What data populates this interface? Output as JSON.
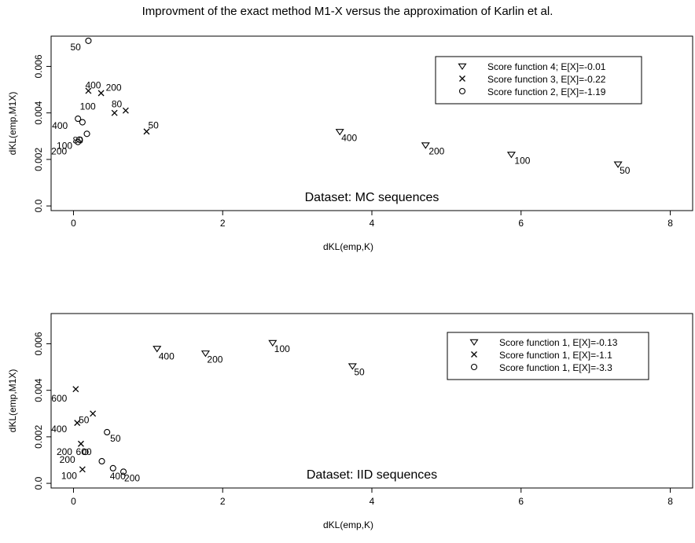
{
  "title": "Improvment of the exact method M1-X versus the approximation of Karlin et al.",
  "chart_data": [
    {
      "type": "scatter",
      "xlabel": "dKL(emp,K)",
      "ylabel": "dKL(emp,M1X)",
      "xlim": [
        -0.3,
        8.3
      ],
      "ylim": [
        -0.0002,
        0.0073
      ],
      "x_ticks": [
        0,
        2,
        4,
        6,
        8
      ],
      "x_tick_labels": [
        "0",
        "2",
        "4",
        "6",
        "8"
      ],
      "y_ticks": [
        0.0,
        0.002,
        0.004,
        0.006
      ],
      "y_tick_labels": [
        "0.0",
        "0.002",
        "0.004",
        "0.006"
      ],
      "annotation": "Dataset: MC sequences",
      "grid": false,
      "legend_position": "top-right",
      "series": [
        {
          "name": "Score function 4; E[X]=-0.01",
          "marker": "triangle-down",
          "points": [
            {
              "x": 3.57,
              "y": 0.0032,
              "label": "400"
            },
            {
              "x": 4.72,
              "y": 0.00262,
              "label": "200"
            },
            {
              "x": 5.87,
              "y": 0.00222,
              "label": "100"
            },
            {
              "x": 7.3,
              "y": 0.0018,
              "label": "50"
            }
          ]
        },
        {
          "name": "Score function 3, E[X]=-0.22",
          "marker": "cross",
          "points": [
            {
              "x": 0.2,
              "y": 0.00495,
              "label": "400"
            },
            {
              "x": 0.37,
              "y": 0.00485,
              "label": "200"
            },
            {
              "x": 0.55,
              "y": 0.004,
              "label": "100"
            },
            {
              "x": 0.7,
              "y": 0.0041,
              "label": "80"
            },
            {
              "x": 0.98,
              "y": 0.0032,
              "label": "50"
            }
          ]
        },
        {
          "name": "Score function 2, E[X]=-1.19",
          "marker": "circle",
          "points": [
            {
              "x": 0.06,
              "y": 0.00375,
              "label": "400"
            },
            {
              "x": 0.12,
              "y": 0.0036,
              "label": ""
            },
            {
              "x": 0.18,
              "y": 0.0031,
              "label": "80"
            },
            {
              "x": 0.08,
              "y": 0.00285,
              "label": "100"
            },
            {
              "x": 0.06,
              "y": 0.00275,
              "label": "200"
            },
            {
              "x": 0.2,
              "y": 0.0071,
              "label": "50"
            }
          ]
        }
      ]
    },
    {
      "type": "scatter",
      "xlabel": "dKL(emp,K)",
      "ylabel": "dKL(emp,M1X)",
      "xlim": [
        -0.3,
        8.3
      ],
      "ylim": [
        -0.0002,
        0.0073
      ],
      "x_ticks": [
        0,
        2,
        4,
        6,
        8
      ],
      "x_tick_labels": [
        "0",
        "2",
        "4",
        "6",
        "8"
      ],
      "y_ticks": [
        0.0,
        0.002,
        0.004,
        0.006
      ],
      "y_tick_labels": [
        "0.0",
        "0.002",
        "0.004",
        "0.006"
      ],
      "annotation": "Dataset: IID sequences",
      "grid": false,
      "legend_position": "top-right",
      "series": [
        {
          "name": "Score function 1, E[X]=-0.13",
          "marker": "triangle-down",
          "points": [
            {
              "x": 1.12,
              "y": 0.0058,
              "label": "400"
            },
            {
              "x": 1.77,
              "y": 0.0056,
              "label": "200"
            },
            {
              "x": 2.67,
              "y": 0.00605,
              "label": "100"
            },
            {
              "x": 3.74,
              "y": 0.00505,
              "label": "50"
            }
          ]
        },
        {
          "name": "Score function 1, E[X]=-1.1",
          "marker": "cross",
          "points": [
            {
              "x": 0.03,
              "y": 0.00405,
              "label": "600"
            },
            {
              "x": 0.05,
              "y": 0.0026,
              "label": "400"
            },
            {
              "x": 0.26,
              "y": 0.003,
              "label": "50"
            },
            {
              "x": 0.1,
              "y": 0.0017,
              "label": "200"
            },
            {
              "x": 0.12,
              "y": 0.0006,
              "label": "100"
            }
          ]
        },
        {
          "name": "Score function 1, E[X]=-3.3",
          "marker": "circle",
          "points": [
            {
              "x": 0.45,
              "y": 0.0022,
              "label": "50"
            },
            {
              "x": 0.16,
              "y": 0.00135,
              "label": "200"
            },
            {
              "x": 0.38,
              "y": 0.00095,
              "label": "600"
            },
            {
              "x": 0.53,
              "y": 0.00065,
              "label": "400"
            },
            {
              "x": 0.67,
              "y": 0.0005,
              "label": "200"
            }
          ]
        }
      ]
    }
  ]
}
